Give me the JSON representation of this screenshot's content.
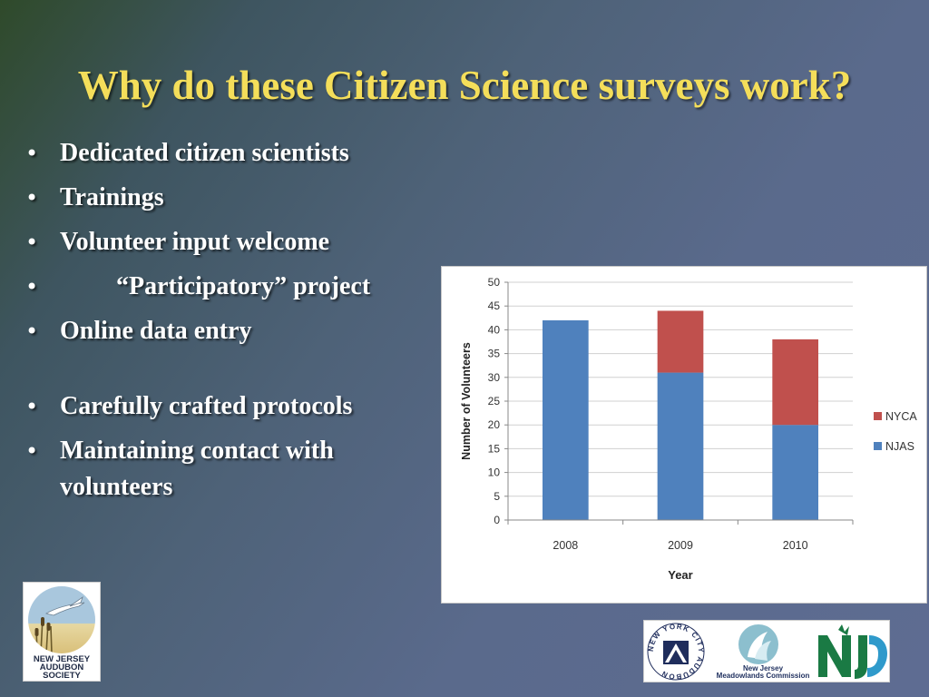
{
  "slide": {
    "title": "Why do these Citizen Science surveys work?",
    "bullets": [
      "Dedicated citizen scientists",
      "Trainings",
      "Volunteer input welcome",
      "“Participatory” project",
      "Online data entry",
      "Carefully crafted protocols",
      "Maintaining contact with volunteers"
    ]
  },
  "chart_data": {
    "type": "bar",
    "stacked": true,
    "categories": [
      "2008",
      "2009",
      "2010"
    ],
    "series": [
      {
        "name": "NJAS",
        "values": [
          42,
          31,
          20
        ],
        "color": "#4f81bd"
      },
      {
        "name": "NYCA",
        "values": [
          0,
          13,
          18
        ],
        "color": "#c0504d"
      }
    ],
    "xlabel": "Year",
    "ylabel": "Number of Volunteers",
    "ylim": [
      0,
      50
    ],
    "yticks": [
      0,
      5,
      10,
      15,
      20,
      25,
      30,
      35,
      40,
      45,
      50
    ],
    "grid": true,
    "legend": "right",
    "legend_order": [
      "NYCA",
      "NJAS"
    ]
  },
  "logos": {
    "audubon_lines": [
      "NEW JERSEY",
      "AUDUBON",
      "SOCIETY"
    ],
    "nyc_audubon_ring": "NEW YORK CITY AUDUBON",
    "njmc_lines": [
      "New Jersey",
      "Meadowlands Commission"
    ],
    "colors": {
      "nyc_navy": "#1f2d5c",
      "nj_green": "#1a7a44",
      "njmc_teal": "#7fb2c2"
    }
  }
}
